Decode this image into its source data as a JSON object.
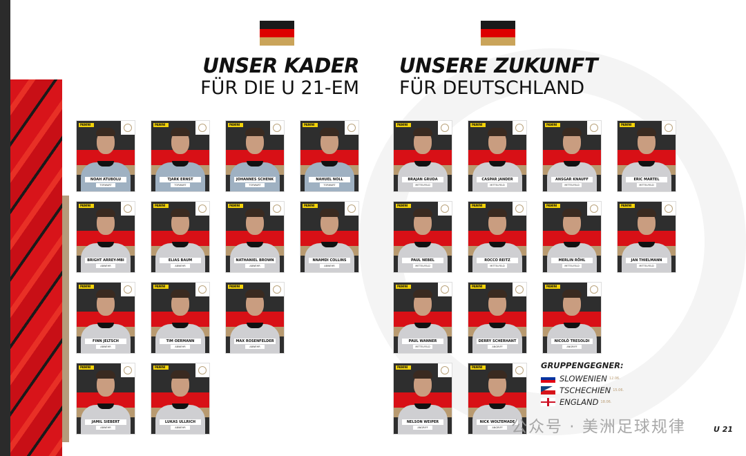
{
  "left": {
    "title_line1": "UNSER KADER",
    "title_line2": "FÜR DIE U 21-EM",
    "players": [
      {
        "name": "NOAH ATUBOLU",
        "position": "TORWART"
      },
      {
        "name": "TJARK ERNST",
        "position": "TORWART"
      },
      {
        "name": "JOHANNES SCHENK",
        "position": "TORWART"
      },
      {
        "name": "NAHUEL NOLL",
        "position": "TORWART"
      },
      {
        "name": "BRIGHT ARREY-MBI",
        "position": "ABWEHR"
      },
      {
        "name": "ELIAS BAUM",
        "position": "ABWEHR"
      },
      {
        "name": "NATHANIEL BROWN",
        "position": "ABWEHR"
      },
      {
        "name": "NNAMDI COLLINS",
        "position": "ABWEHR"
      },
      {
        "name": "FINN JELTSCH",
        "position": "ABWEHR"
      },
      {
        "name": "TIM OERMANN",
        "position": "ABWEHR"
      },
      {
        "name": "MAX ROSENFELDER",
        "position": "ABWEHR"
      },
      {
        "name": "JAMIL SIEBERT",
        "position": "ABWEHR"
      },
      {
        "name": "LUKAS ULLRICH",
        "position": "ABWEHR"
      }
    ]
  },
  "right": {
    "title_line1": "UNSERE ZUKUNFT",
    "title_line2": "FÜR DEUTSCHLAND",
    "players": [
      {
        "name": "BRAJAN GRUDA",
        "position": "MITTELFELD"
      },
      {
        "name": "CASPAR JANDER",
        "position": "MITTELFELD"
      },
      {
        "name": "ANSGAR KNAUFF",
        "position": "MITTELFELD"
      },
      {
        "name": "ERIC MARTEL",
        "position": "MITTELFELD"
      },
      {
        "name": "PAUL NEBEL",
        "position": "MITTELFELD"
      },
      {
        "name": "ROCCO REITZ",
        "position": "MITTELFELD"
      },
      {
        "name": "MERLIN RÖHL",
        "position": "MITTELFELD"
      },
      {
        "name": "JAN THIELMANN",
        "position": "MITTELFELD"
      },
      {
        "name": "PAUL WANNER",
        "position": "MITTELFELD"
      },
      {
        "name": "DERRY SCHERHANT",
        "position": "ANGRIFF"
      },
      {
        "name": "NICOLÒ TRESOLDI",
        "position": "ANGRIFF"
      },
      {
        "name": "NELSON WEIPER",
        "position": "ANGRIFF"
      },
      {
        "name": "NICK WOLTEMADE",
        "position": "ANGRIFF"
      }
    ]
  },
  "sticker_brand": "PANINI",
  "opponents": {
    "heading": "GRUPPENGEGNER:",
    "items": [
      {
        "country": "SLOWENIEN",
        "date": "12.06.",
        "flag": [
          "#ffffff",
          "#0033a0",
          "#e30613"
        ]
      },
      {
        "country": "TSCHECHIEN",
        "date": "15.06.",
        "flag": [
          "#ffffff",
          "#d7141a",
          "#11457e"
        ]
      },
      {
        "country": "ENGLAND",
        "date": "18.06.",
        "flag": [
          "#ffffff",
          "#ce1124"
        ]
      }
    ]
  },
  "page_label": "U 21",
  "watermark": "公众号 · 美洲足球规律",
  "colors": {
    "red": "#d81016",
    "black": "#2e2e2e",
    "gold": "#b89a70",
    "panini_yellow": "#f2d20a"
  }
}
